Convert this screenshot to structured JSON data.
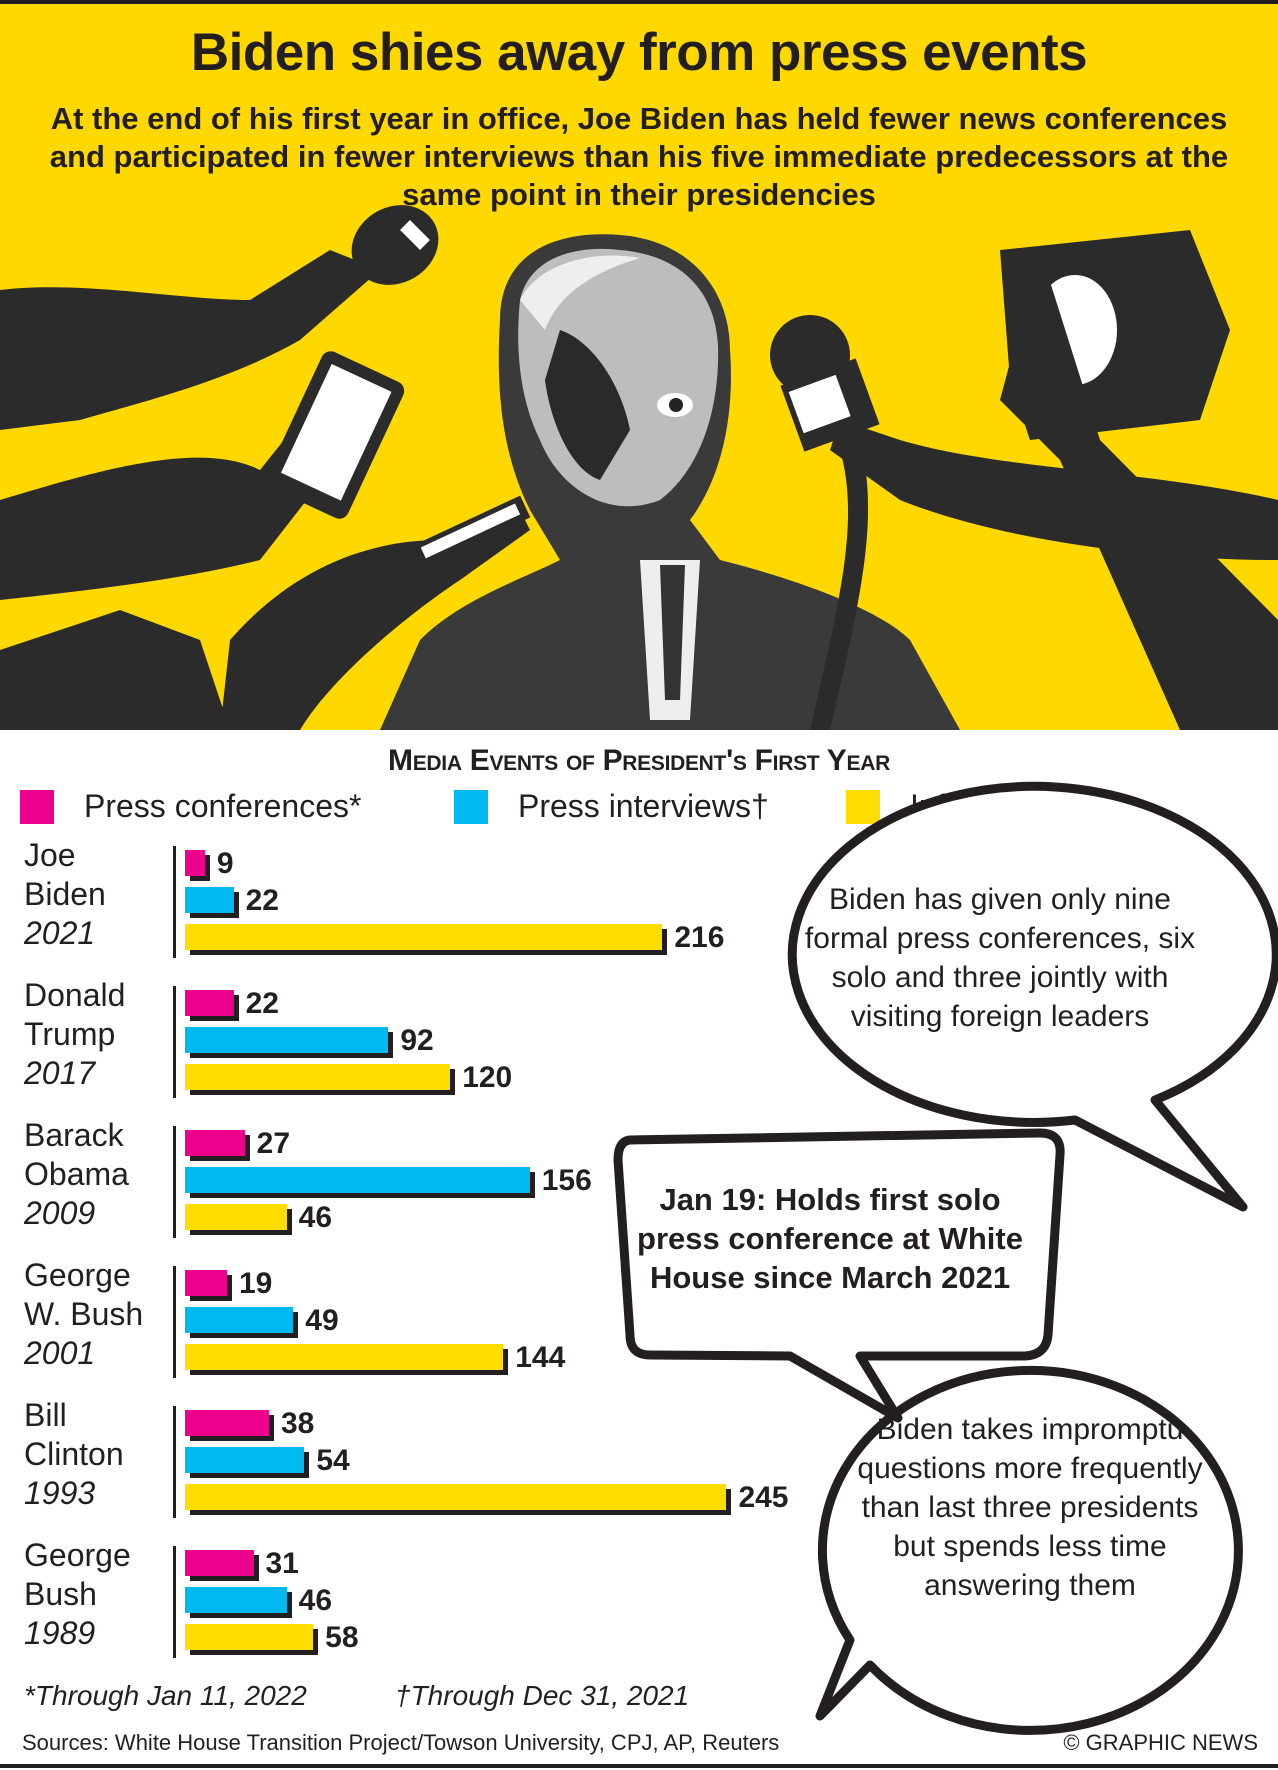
{
  "header": {
    "title": "Biden shies away from press events",
    "subtitle": "At the end of his first year in office, Joe Biden has held fewer news conferences and participated in fewer interviews than his five immediate predecessors at the same point in their presidencies"
  },
  "colors": {
    "press_conferences": "#ec008c",
    "press_interviews": "#00b9f1",
    "informal_qa": "#ffdd00",
    "background_header": "#ffd800"
  },
  "chart_data": {
    "type": "bar",
    "orientation": "horizontal",
    "title": "Media Events of President's First Year",
    "legend_placement": "top",
    "grid": false,
    "legend": [
      "Press conferences*",
      "Press interviews†",
      "Informal Q&A†"
    ],
    "categories": [
      {
        "name": [
          "Joe",
          "Biden"
        ],
        "year": "2021"
      },
      {
        "name": [
          "Donald",
          "Trump"
        ],
        "year": "2017"
      },
      {
        "name": [
          "Barack",
          "Obama"
        ],
        "year": "2009"
      },
      {
        "name": [
          "George",
          "W. Bush"
        ],
        "year": "2001"
      },
      {
        "name": [
          "Bill",
          "Clinton"
        ],
        "year": "1993"
      },
      {
        "name": [
          "George",
          "Bush"
        ],
        "year": "1989"
      }
    ],
    "series": [
      {
        "name": "Press conferences*",
        "values": [
          9,
          22,
          27,
          19,
          38,
          31
        ]
      },
      {
        "name": "Press interviews†",
        "values": [
          22,
          92,
          156,
          49,
          54,
          46
        ]
      },
      {
        "name": "Informal Q&A†",
        "values": [
          216,
          120,
          46,
          144,
          245,
          58
        ]
      }
    ],
    "xlim": [
      0,
      245
    ]
  },
  "bubbles": {
    "top": "Biden has given only nine formal press conferences, six solo and three jointly with visiting foreign leaders",
    "middle": "Jan 19: Holds first solo press conference at White House since March 2021",
    "bottom": "Biden takes impromptu questions more frequently than last three presidents but spends less time answering them"
  },
  "footnotes": {
    "asterisk": "*Through Jan 11, 2022",
    "dagger": "†Through Dec 31, 2021"
  },
  "sources": "Sources: White House Transition Project/Towson University, CPJ, AP, Reuters",
  "credit": "© GRAPHIC NEWS"
}
